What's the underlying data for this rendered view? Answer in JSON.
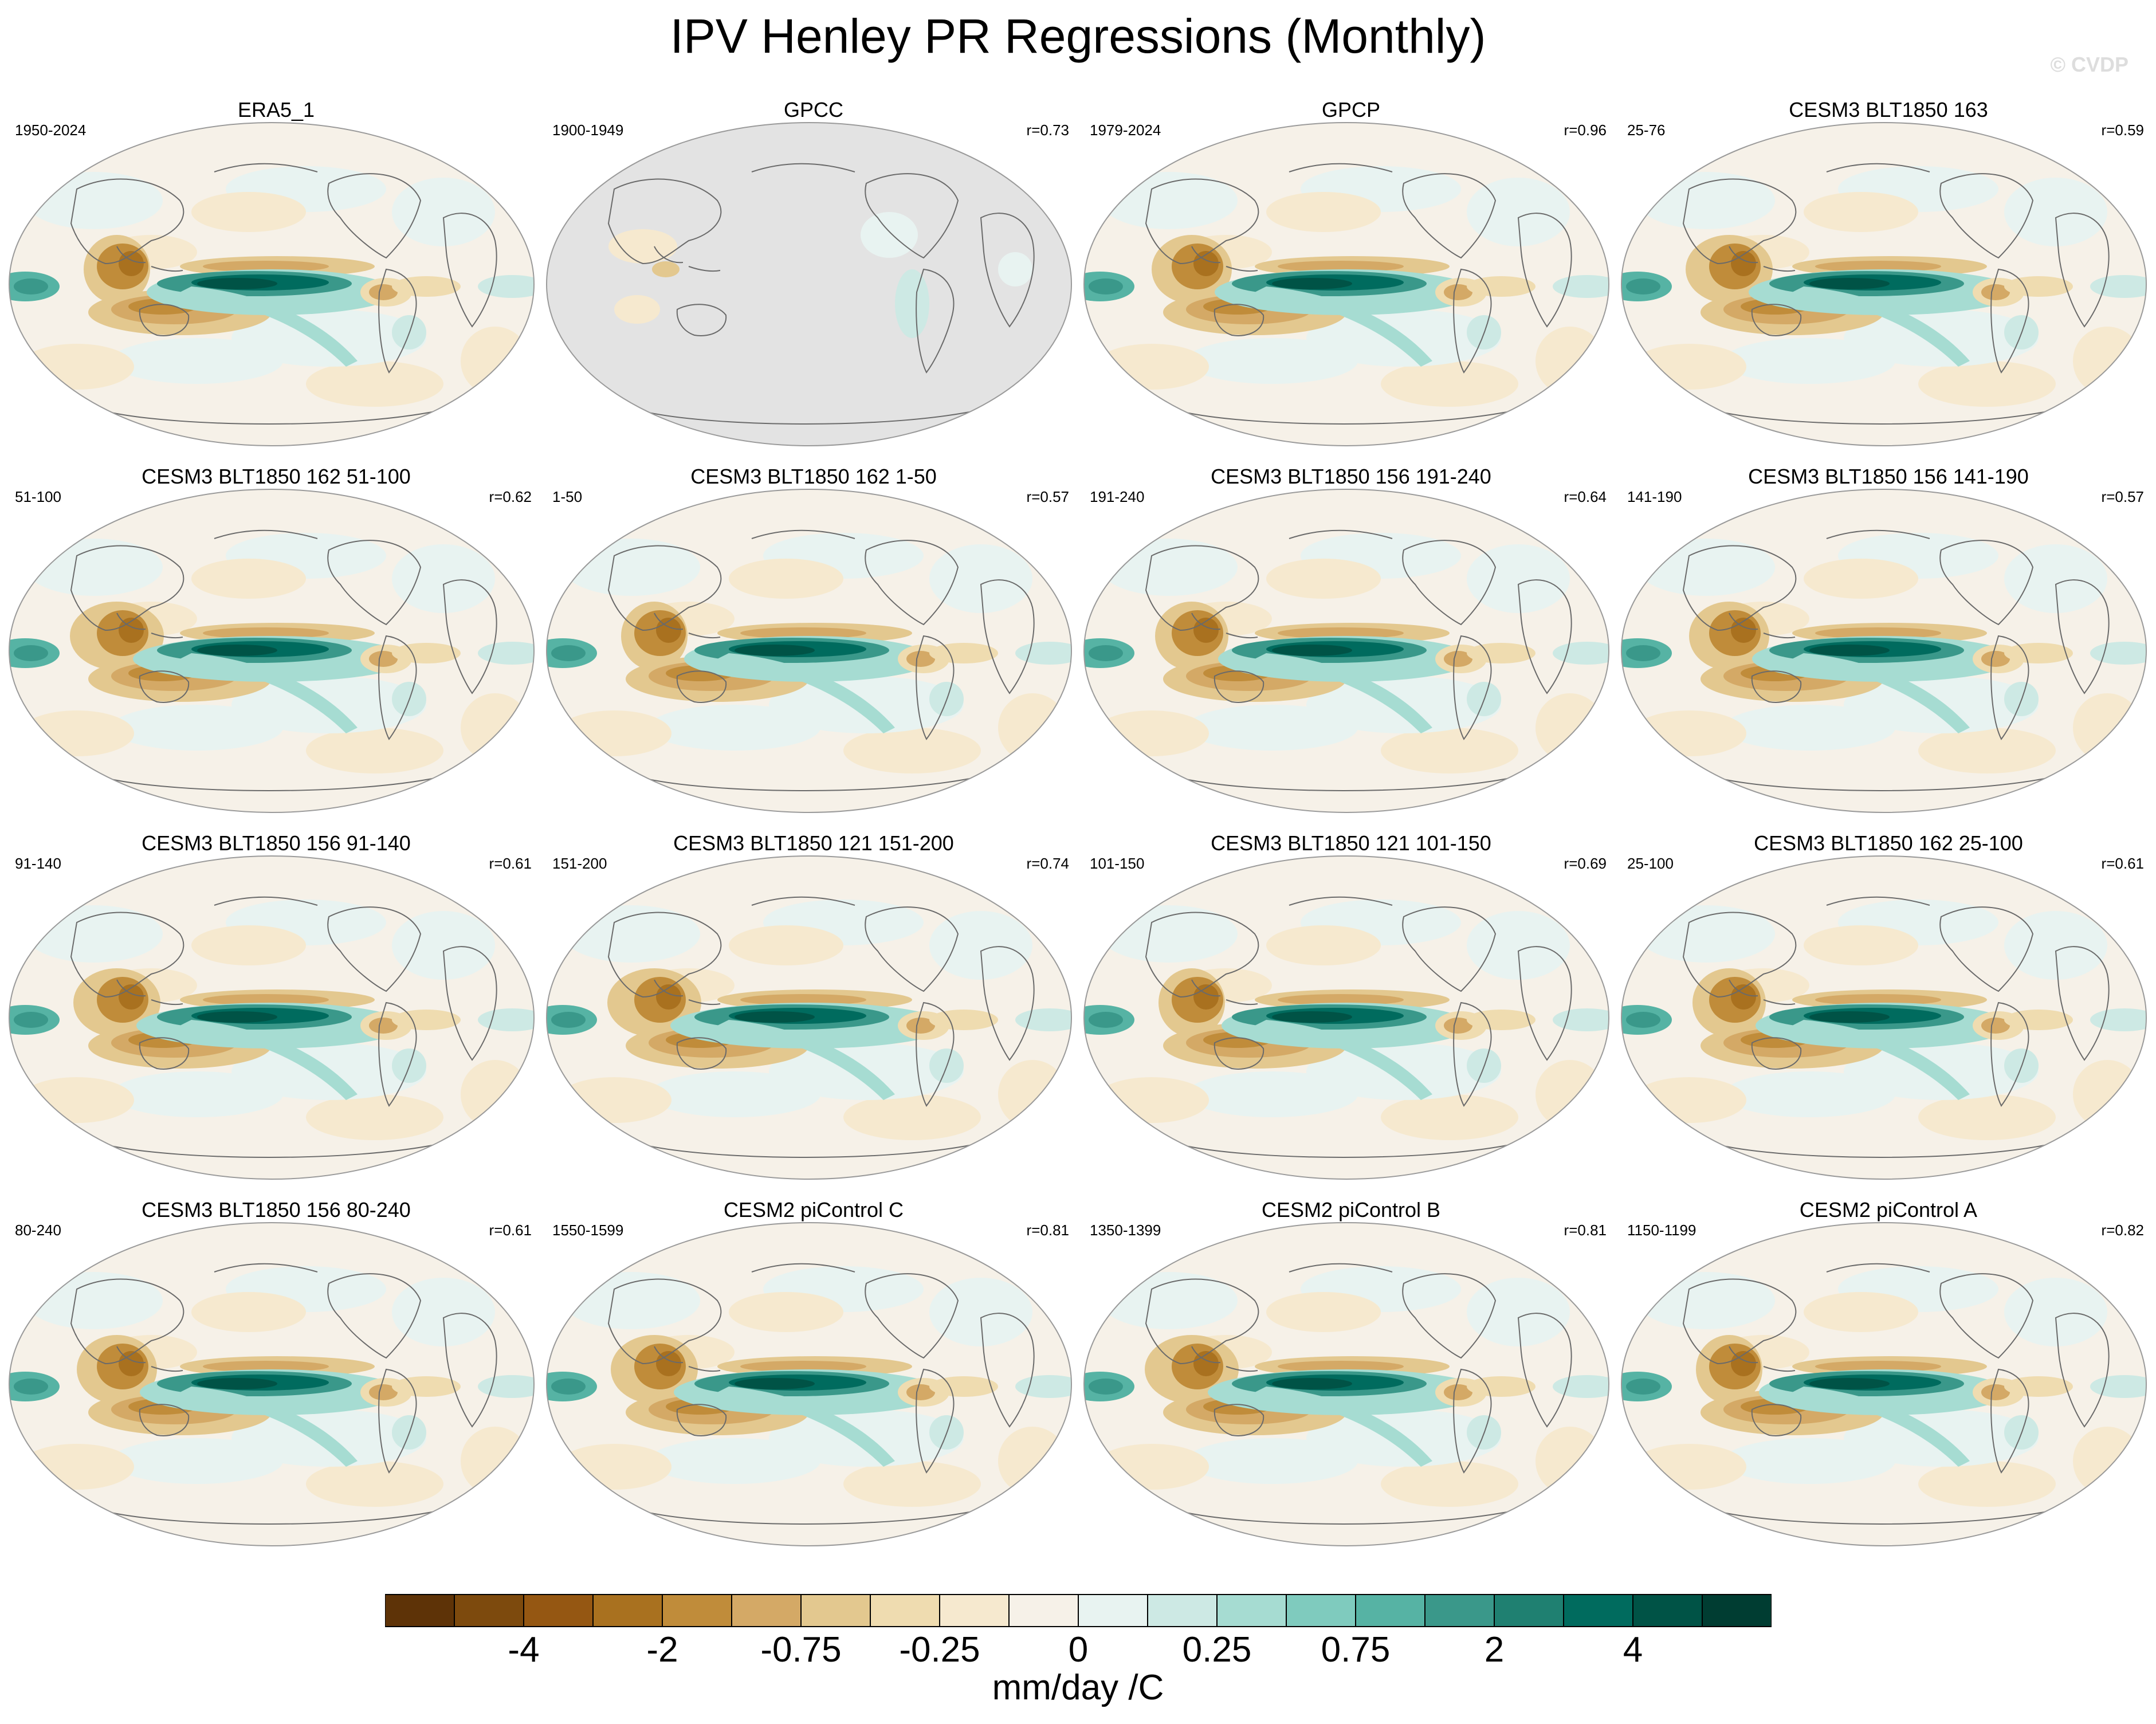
{
  "title": "IPV Henley PR Regressions (Monthly)",
  "watermark": "© CVDP",
  "colors": {
    "scale": [
      "#5e3307",
      "#7d4a0d",
      "#955712",
      "#a9711f",
      "#c08c3a",
      "#d4a966",
      "#e3c88f",
      "#efdcb0",
      "#f6e9cf",
      "#f6f1e8",
      "#e8f3f1",
      "#cde9e4",
      "#a6dcd2",
      "#7fcbbe",
      "#56b3a4",
      "#3a988a",
      "#1f8071",
      "#006b5e",
      "#005346",
      "#003d32"
    ],
    "land_mask": "#e3e3e3",
    "coast": "#6a6a6a"
  },
  "panels": [
    {
      "title": "ERA5_1",
      "period": "1950-2024",
      "corr": "",
      "icon": "globe-map-icon",
      "masked": false
    },
    {
      "title": "GPCC",
      "period": "1900-1949",
      "corr": "r=0.73",
      "icon": "globe-map-icon",
      "masked": true
    },
    {
      "title": "GPCP",
      "period": "1979-2024",
      "corr": "r=0.96",
      "icon": "globe-map-icon",
      "masked": false
    },
    {
      "title": "CESM3 BLT1850 163",
      "period": "25-76",
      "corr": "r=0.59",
      "icon": "globe-map-icon",
      "masked": false
    },
    {
      "title": "CESM3 BLT1850 162 51-100",
      "period": "51-100",
      "corr": "r=0.62",
      "icon": "globe-map-icon",
      "masked": false
    },
    {
      "title": "CESM3 BLT1850 162 1-50",
      "period": "1-50",
      "corr": "r=0.57",
      "icon": "globe-map-icon",
      "masked": false
    },
    {
      "title": "CESM3 BLT1850 156 191-240",
      "period": "191-240",
      "corr": "r=0.64",
      "icon": "globe-map-icon",
      "masked": false
    },
    {
      "title": "CESM3 BLT1850 156 141-190",
      "period": "141-190",
      "corr": "r=0.57",
      "icon": "globe-map-icon",
      "masked": false
    },
    {
      "title": "CESM3 BLT1850 156 91-140",
      "period": "91-140",
      "corr": "r=0.61",
      "icon": "globe-map-icon",
      "masked": false
    },
    {
      "title": "CESM3 BLT1850 121 151-200",
      "period": "151-200",
      "corr": "r=0.74",
      "icon": "globe-map-icon",
      "masked": false
    },
    {
      "title": "CESM3 BLT1850 121 101-150",
      "period": "101-150",
      "corr": "r=0.69",
      "icon": "globe-map-icon",
      "masked": false
    },
    {
      "title": "CESM3 BLT1850 162 25-100",
      "period": "25-100",
      "corr": "r=0.61",
      "icon": "globe-map-icon",
      "masked": false
    },
    {
      "title": "CESM3 BLT1850 156 80-240",
      "period": "80-240",
      "corr": "r=0.61",
      "icon": "globe-map-icon",
      "masked": false
    },
    {
      "title": "CESM2 piControl C",
      "period": "1550-1599",
      "corr": "r=0.81",
      "icon": "globe-map-icon",
      "masked": false
    },
    {
      "title": "CESM2 piControl B",
      "period": "1350-1399",
      "corr": "r=0.81",
      "icon": "globe-map-icon",
      "masked": false
    },
    {
      "title": "CESM2 piControl A",
      "period": "1150-1199",
      "corr": "r=0.82",
      "icon": "globe-map-icon",
      "masked": false
    }
  ],
  "colorbar": {
    "labels": [
      "-4",
      "-2",
      "-0.75",
      "-0.25",
      "0",
      "0.25",
      "0.75",
      "2",
      "4"
    ],
    "units": "mm/day /C"
  }
}
